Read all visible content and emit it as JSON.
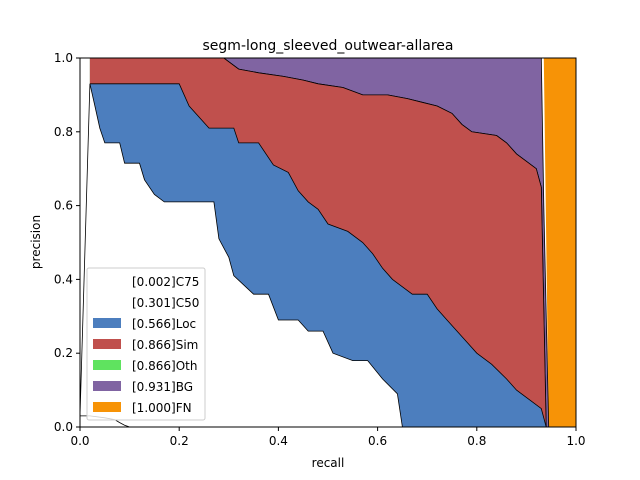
{
  "chart_data": {
    "type": "area",
    "title": "segm-long_sleeved_outwear-allarea",
    "xlabel": "recall",
    "ylabel": "precision",
    "xlim": [
      0,
      1
    ],
    "ylim": [
      0,
      1
    ],
    "xticks": [
      "0.0",
      "0.2",
      "0.4",
      "0.6",
      "0.8",
      "1.0"
    ],
    "yticks": [
      "0.0",
      "0.2",
      "0.4",
      "0.6",
      "0.8",
      "1.0"
    ],
    "grid": false,
    "legend_position": "lower-left",
    "series": [
      {
        "name": "[0.002]C75",
        "color": "#ffffff",
        "points": [
          [
            0,
            0.03
          ],
          [
            0.02,
            0.03
          ],
          [
            0.05,
            0.025
          ],
          [
            0.07,
            0.02
          ],
          [
            0.08,
            0.012
          ],
          [
            0.09,
            0.005
          ],
          [
            0.1,
            0
          ]
        ]
      },
      {
        "name": "[0.301]C50",
        "color": "#ffffff",
        "points": [
          [
            0,
            0.03
          ],
          [
            0.02,
            0.93
          ],
          [
            0.03,
            0.87
          ],
          [
            0.04,
            0.81
          ],
          [
            0.05,
            0.77
          ],
          [
            0.08,
            0.77
          ],
          [
            0.09,
            0.715
          ],
          [
            0.12,
            0.715
          ],
          [
            0.13,
            0.67
          ],
          [
            0.15,
            0.63
          ],
          [
            0.17,
            0.61
          ],
          [
            0.27,
            0.61
          ],
          [
            0.28,
            0.51
          ],
          [
            0.3,
            0.46
          ],
          [
            0.31,
            0.41
          ],
          [
            0.35,
            0.36
          ],
          [
            0.38,
            0.36
          ],
          [
            0.4,
            0.29
          ],
          [
            0.44,
            0.29
          ],
          [
            0.46,
            0.26
          ],
          [
            0.49,
            0.26
          ],
          [
            0.51,
            0.2
          ],
          [
            0.55,
            0.18
          ],
          [
            0.58,
            0.18
          ],
          [
            0.61,
            0.13
          ],
          [
            0.64,
            0.09
          ],
          [
            0.65,
            0
          ]
        ]
      },
      {
        "name": "[0.566]Loc",
        "color": "#4c7ebe",
        "points": [
          [
            0.02,
            0.93
          ],
          [
            0.2,
            0.93
          ],
          [
            0.22,
            0.87
          ],
          [
            0.26,
            0.81
          ],
          [
            0.31,
            0.81
          ],
          [
            0.32,
            0.77
          ],
          [
            0.36,
            0.77
          ],
          [
            0.39,
            0.71
          ],
          [
            0.42,
            0.69
          ],
          [
            0.44,
            0.64
          ],
          [
            0.46,
            0.61
          ],
          [
            0.48,
            0.59
          ],
          [
            0.5,
            0.55
          ],
          [
            0.54,
            0.53
          ],
          [
            0.57,
            0.5
          ],
          [
            0.59,
            0.47
          ],
          [
            0.61,
            0.43
          ],
          [
            0.63,
            0.4
          ],
          [
            0.65,
            0.38
          ],
          [
            0.67,
            0.36
          ],
          [
            0.7,
            0.36
          ],
          [
            0.72,
            0.32
          ],
          [
            0.74,
            0.29
          ],
          [
            0.76,
            0.26
          ],
          [
            0.78,
            0.23
          ],
          [
            0.8,
            0.2
          ],
          [
            0.83,
            0.17
          ],
          [
            0.86,
            0.13
          ],
          [
            0.88,
            0.1
          ],
          [
            0.91,
            0.07
          ],
          [
            0.93,
            0.05
          ],
          [
            0.94,
            0
          ]
        ]
      },
      {
        "name": "[0.866]Sim",
        "color": "#c0504d",
        "points": [
          [
            0.02,
            1
          ],
          [
            0.29,
            1
          ],
          [
            0.32,
            0.97
          ],
          [
            0.36,
            0.96
          ],
          [
            0.41,
            0.95
          ],
          [
            0.45,
            0.94
          ],
          [
            0.48,
            0.93
          ],
          [
            0.53,
            0.92
          ],
          [
            0.57,
            0.9
          ],
          [
            0.62,
            0.9
          ],
          [
            0.66,
            0.89
          ],
          [
            0.69,
            0.88
          ],
          [
            0.72,
            0.87
          ],
          [
            0.75,
            0.85
          ],
          [
            0.77,
            0.82
          ],
          [
            0.79,
            0.8
          ],
          [
            0.84,
            0.79
          ],
          [
            0.86,
            0.77
          ],
          [
            0.88,
            0.74
          ],
          [
            0.9,
            0.72
          ],
          [
            0.92,
            0.7
          ],
          [
            0.93,
            0.65
          ],
          [
            0.94,
            0
          ]
        ]
      },
      {
        "name": "[0.866]Oth",
        "color": "#5fe35f",
        "points": [
          [
            0.02,
            1
          ],
          [
            0.29,
            1
          ],
          [
            0.32,
            0.97
          ],
          [
            0.36,
            0.96
          ],
          [
            0.41,
            0.95
          ],
          [
            0.45,
            0.94
          ],
          [
            0.48,
            0.93
          ],
          [
            0.53,
            0.92
          ],
          [
            0.57,
            0.9
          ],
          [
            0.62,
            0.9
          ],
          [
            0.66,
            0.89
          ],
          [
            0.69,
            0.88
          ],
          [
            0.72,
            0.87
          ],
          [
            0.75,
            0.85
          ],
          [
            0.77,
            0.82
          ],
          [
            0.79,
            0.8
          ],
          [
            0.84,
            0.79
          ],
          [
            0.86,
            0.77
          ],
          [
            0.88,
            0.74
          ],
          [
            0.9,
            0.72
          ],
          [
            0.92,
            0.7
          ],
          [
            0.93,
            0.65
          ],
          [
            0.94,
            0
          ]
        ]
      },
      {
        "name": "[0.931]BG",
        "color": "#8064a2",
        "points": [
          [
            0.02,
            1
          ],
          [
            0.93,
            1
          ],
          [
            0.935,
            0.6
          ],
          [
            0.945,
            0
          ]
        ]
      },
      {
        "name": "[1.000]FN",
        "color": "#f79306",
        "points": [
          [
            0.935,
            1
          ],
          [
            1,
            1
          ],
          [
            1,
            0
          ],
          [
            0.945,
            0
          ]
        ]
      }
    ]
  }
}
